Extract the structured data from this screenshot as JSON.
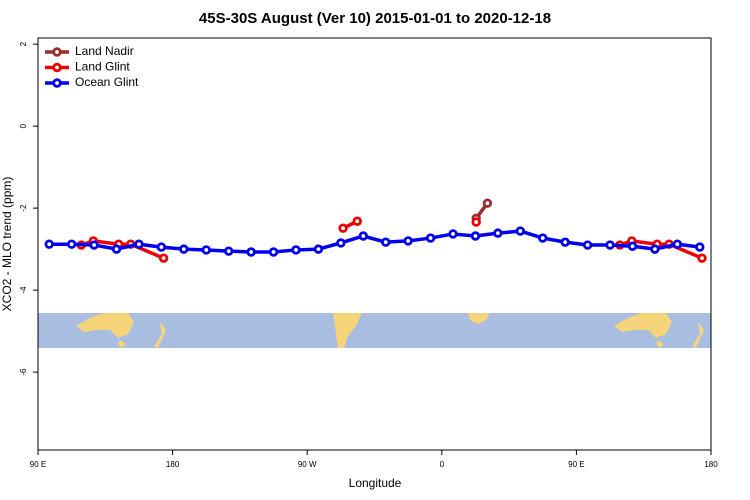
{
  "chart_data": {
    "type": "line",
    "title": "45S-30S August (Ver 10)   2015-01-01 to 2020-12-18",
    "xlabel": "Longitude",
    "ylabel": "XCO2 - MLO trend (ppm)",
    "xlim": [
      90,
      540
    ],
    "ylim": [
      -7.9,
      2.15
    ],
    "xticks": [
      {
        "value": 90,
        "label": "90 E"
      },
      {
        "value": 180,
        "label": "180"
      },
      {
        "value": 270,
        "label": "90 W"
      },
      {
        "value": 360,
        "label": "0"
      },
      {
        "value": 450,
        "label": "90 E"
      },
      {
        "value": 540,
        "label": "180"
      }
    ],
    "yticks": [
      2,
      0,
      -2,
      -4,
      -6
    ],
    "legend": "top-left",
    "series": [
      {
        "name": "Land Nadir",
        "color": "#9b2d2d",
        "x": [
          383,
          390.5
        ],
        "values": [
          -2.25,
          -1.88
        ]
      },
      {
        "name": "Land Glint",
        "color": "#ee0000",
        "x": [
          119,
          127,
          144,
          152,
          174,
          null,
          294,
          303.5,
          null,
          383,
          null,
          479,
          487,
          504,
          512,
          534
        ],
        "values": [
          -2.9,
          -2.8,
          -2.88,
          -2.88,
          -3.22,
          null,
          -2.49,
          -2.32,
          null,
          -2.34,
          null,
          -2.9,
          -2.8,
          -2.88,
          -2.88,
          -3.22
        ]
      },
      {
        "name": "Ocean Glint",
        "color": "#0000ee",
        "x": [
          97.5,
          112.5,
          127.5,
          142.5,
          157.5,
          172.5,
          187.5,
          202.5,
          217.5,
          232.5,
          247.5,
          262.5,
          277.5,
          292.5,
          307.5,
          322.5,
          337.5,
          352.5,
          367.5,
          382.5,
          397.5,
          412.5,
          427.5,
          442.5,
          457.5,
          472.5,
          487.5,
          502.5,
          517.5,
          532.5
        ],
        "values": [
          -2.88,
          -2.88,
          -2.9,
          -3.0,
          -2.88,
          -2.95,
          -3.0,
          -3.02,
          -3.05,
          -3.07,
          -3.07,
          -3.02,
          -3.0,
          -2.85,
          -2.68,
          -2.83,
          -2.8,
          -2.73,
          -2.63,
          -2.68,
          -2.61,
          -2.56,
          -2.73,
          -2.83,
          -2.9,
          -2.9,
          -2.93,
          -3.0,
          -2.88,
          -2.95
        ]
      }
    ]
  }
}
